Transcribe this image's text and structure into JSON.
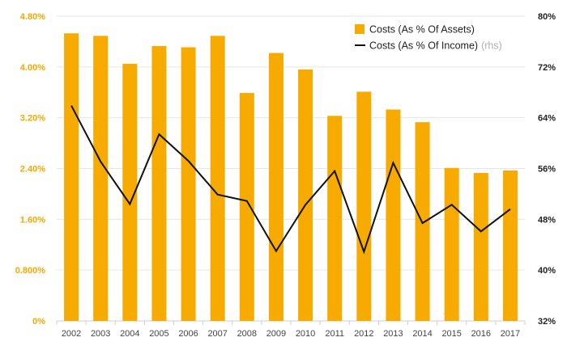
{
  "chart_data": {
    "type": "bar",
    "categories": [
      "2002",
      "2003",
      "2004",
      "2005",
      "2006",
      "2007",
      "2008",
      "2009",
      "2010",
      "2011",
      "2012",
      "2013",
      "2014",
      "2015",
      "2016",
      "2017"
    ],
    "series": [
      {
        "name": "Costs (As % Of Assets)",
        "type": "bar",
        "axis": "left",
        "color": "#f7ab00",
        "values": [
          4.53,
          4.49,
          4.05,
          4.33,
          4.31,
          4.49,
          3.59,
          4.22,
          3.96,
          3.23,
          3.61,
          3.33,
          3.13,
          2.41,
          2.33,
          2.37
        ]
      },
      {
        "name": "Costs (As % Of Income)",
        "name_suffix": "(rhs)",
        "type": "line",
        "axis": "right",
        "color": "#111111",
        "values": [
          65.9,
          57.1,
          50.4,
          61.4,
          57.2,
          51.9,
          50.9,
          43.0,
          50.3,
          55.6,
          42.9,
          56.9,
          47.4,
          50.3,
          46.1,
          49.6
        ]
      }
    ],
    "y_left": {
      "min": 0,
      "max": 4.8,
      "ticks": [
        0,
        0.8,
        1.6,
        2.4,
        3.2,
        4.0,
        4.8
      ],
      "tick_labels": [
        "0%",
        "0.800%",
        "1.60%",
        "2.40%",
        "3.20%",
        "4.00%",
        "4.80%"
      ],
      "color": "#f2a900"
    },
    "y_right": {
      "min": 32,
      "max": 80,
      "ticks": [
        32,
        40,
        48,
        56,
        64,
        72,
        80
      ],
      "tick_labels": [
        "32%",
        "40%",
        "48%",
        "56%",
        "64%",
        "72%",
        "80%"
      ],
      "color": "#222222"
    },
    "grid": true,
    "legend_position": "top-right",
    "title": "",
    "xlabel": "",
    "ylabel": ""
  }
}
